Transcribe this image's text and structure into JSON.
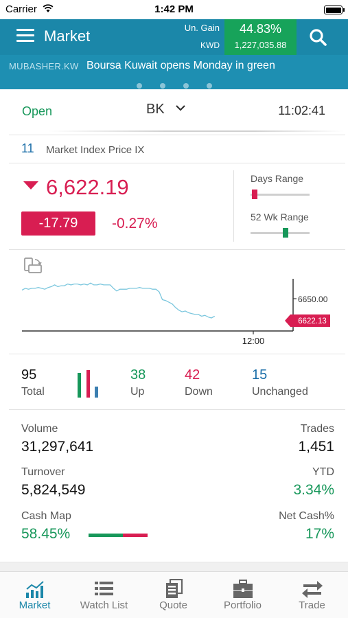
{
  "status_bar": {
    "carrier": "Carrier",
    "time": "1:42 PM"
  },
  "header": {
    "title": "Market",
    "gain_label": "Un. Gain",
    "currency": "KWD",
    "gain_percent": "44.83%",
    "gain_value": "1,227,035.88",
    "icons": [
      "menu-icon",
      "search-icon"
    ]
  },
  "ticker": {
    "source": "MUBASHER.KW",
    "headline": "Boursa Kuwait opens Monday in green",
    "pages": 4
  },
  "market": {
    "state": "Open",
    "exchange": "BK",
    "clock": "11:02:41"
  },
  "index": {
    "code": "11",
    "name": "Market Index Price IX",
    "price": "6,622.19",
    "change": "-17.79",
    "change_percent": "-0.27%",
    "days_range_label": "Days Range",
    "wk_range_label": "52 Wk Range",
    "days_range_position": 0.03,
    "wk_range_position": 0.6
  },
  "chart_data": {
    "type": "line",
    "x_tick_label": "12:00",
    "y_tick_label": "6650.00",
    "last_price_label": "6622.13",
    "ylim": [
      6610,
      6670
    ],
    "values": [
      6657,
      6659,
      6658,
      6659,
      6659,
      6660,
      6659,
      6658,
      6660,
      6661,
      6663,
      6661,
      6662,
      6662,
      6664,
      6663,
      6664,
      6664,
      6663,
      6664,
      6663,
      6665,
      6663,
      6663,
      6664,
      6663,
      6663,
      6663,
      6659,
      6656,
      6658,
      6658,
      6658,
      6659,
      6659,
      6659,
      6660,
      6659,
      6659,
      6659,
      6658,
      6658,
      6655,
      6646,
      6645,
      6643,
      6641,
      6637,
      6634,
      6632,
      6633,
      6631,
      6630,
      6629,
      6629,
      6627,
      6628,
      6626,
      6625,
      6627
    ],
    "x_total_points": 84,
    "colors": {
      "line": "#7cc7de",
      "last_price": "#d81e52"
    }
  },
  "breadth": {
    "total": "95",
    "total_label": "Total",
    "up": "38",
    "up_label": "Up",
    "down": "42",
    "down_label": "Down",
    "unchanged": "15",
    "unchanged_label": "Unchanged"
  },
  "stats": {
    "volume_label": "Volume",
    "volume": "31,297,641",
    "trades_label": "Trades",
    "trades": "1,451",
    "turnover_label": "Turnover",
    "turnover": "5,824,549",
    "ytd_label": "YTD",
    "ytd": "3.34%",
    "cash_map_label": "Cash Map",
    "cash_map": "58.45%",
    "cash_map_fraction": 0.5845,
    "net_cash_label": "Net Cash%",
    "net_cash": "17%"
  },
  "nav": {
    "items": [
      {
        "label": "Market",
        "icon": "market-chart-icon",
        "active": true
      },
      {
        "label": "Watch List",
        "icon": "watch-list-icon",
        "active": false
      },
      {
        "label": "Quote",
        "icon": "quote-icon",
        "active": false
      },
      {
        "label": "Portfolio",
        "icon": "portfolio-icon",
        "active": false
      },
      {
        "label": "Trade",
        "icon": "trade-arrows-icon",
        "active": false
      }
    ]
  },
  "colors": {
    "header": "#1b87a9",
    "gain_box": "#17a35a",
    "up": "#17975a",
    "down": "#d81e52",
    "index_blue": "#1b6ea8"
  }
}
